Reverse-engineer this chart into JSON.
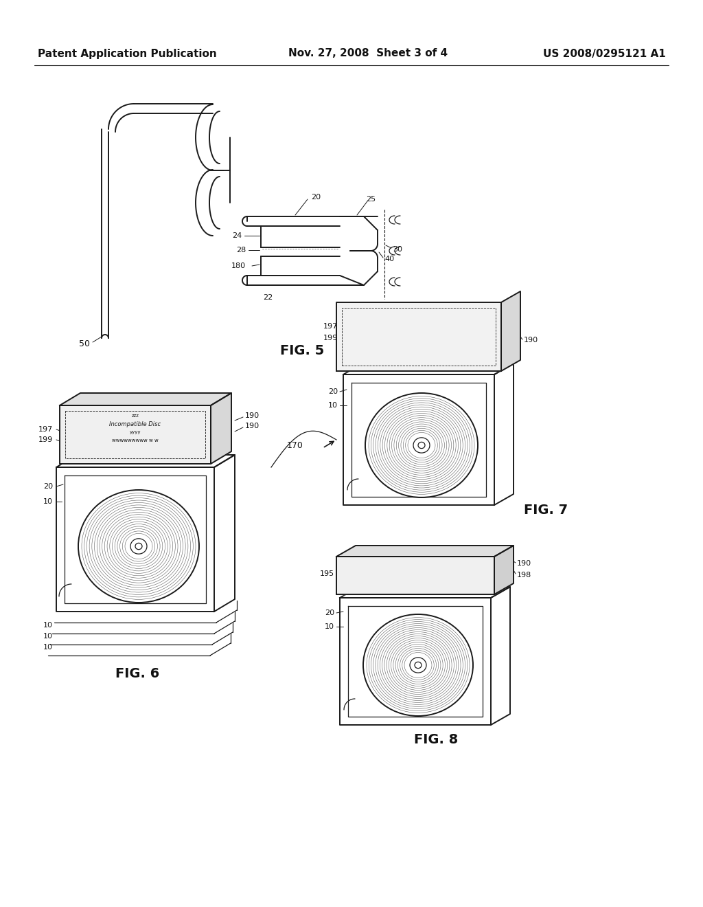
{
  "header_left": "Patent Application Publication",
  "header_mid": "Nov. 27, 2008  Sheet 3 of 4",
  "header_right": "US 2008/0295121 A1",
  "header_fontsize": 11,
  "bg_color": "#ffffff",
  "line_color": "#1a1a1a",
  "fig5_label": "FIG. 5",
  "fig6_label": "FIG. 6",
  "fig7_label": "FIG. 7",
  "fig8_label": "FIG. 8"
}
